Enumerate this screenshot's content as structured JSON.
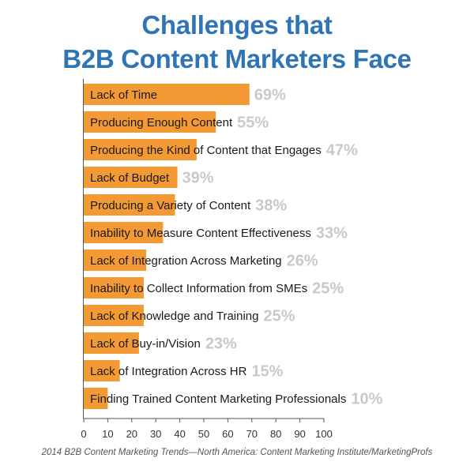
{
  "title_line1": "Challenges that",
  "title_line2": "B2B Content Marketers Face",
  "source": "2014 B2B Content Marketing Trends—North America: Content Marketing Institute/MarketingProfs",
  "colors": {
    "bar": "#f39a34",
    "title": "#2f74b5",
    "value_label": "#c9c9c9",
    "axis": "#555555"
  },
  "chart_data": {
    "type": "bar",
    "orientation": "horizontal",
    "title": "Challenges that B2B Content Marketers Face",
    "categories": [
      "Lack of Time",
      "Producing Enough Content",
      "Producing the Kind of Content that Engages",
      "Lack of Budget",
      "Producing a Variety of Content",
      "Inability to Measure Content Effectiveness",
      "Lack of Integration Across Marketing",
      "Inability to Collect Information from SMEs",
      "Lack of Knowledge and Training",
      "Lack of Buy-in/Vision",
      "Lack of Integration Across HR",
      "Finding Trained Content Marketing Professionals"
    ],
    "values": [
      69,
      55,
      47,
      39,
      38,
      33,
      26,
      25,
      25,
      23,
      15,
      10
    ],
    "value_labels": [
      "69%",
      "55%",
      "47%",
      "39%",
      "38%",
      "33%",
      "26%",
      "25%",
      "25%",
      "23%",
      "15%",
      "10%"
    ],
    "xlim": [
      0,
      100
    ],
    "x_ticks": [
      0,
      10,
      20,
      30,
      40,
      50,
      60,
      70,
      80,
      90,
      100
    ],
    "grid": false,
    "legend": "none"
  }
}
